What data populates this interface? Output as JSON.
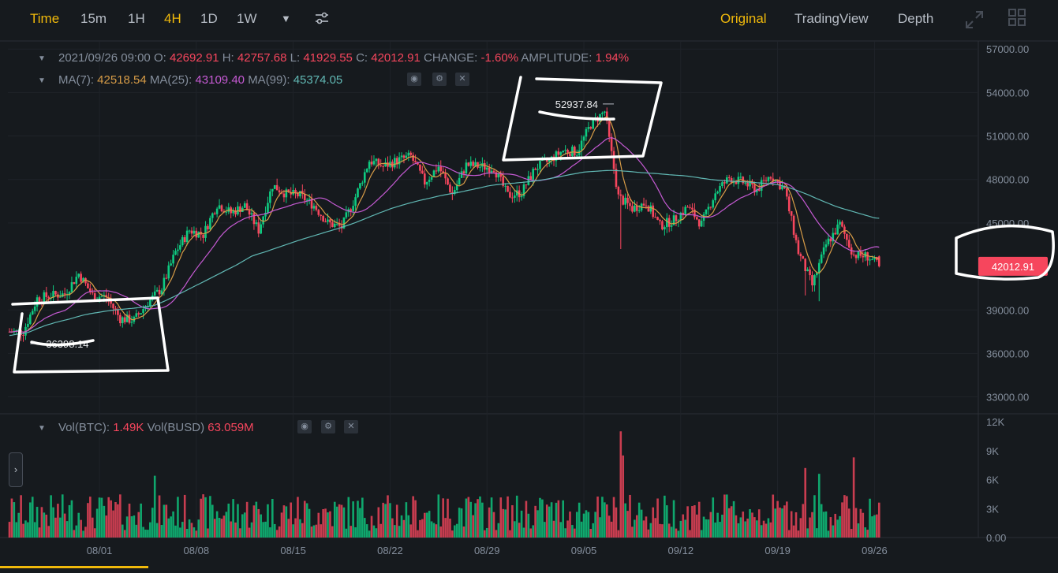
{
  "toolbar": {
    "time": "Time",
    "intervals": [
      "15m",
      "1H",
      "4H",
      "1D",
      "1W"
    ],
    "active_interval": "4H",
    "more_icon": "caret-down-icon",
    "settings_icon": "sliders-icon",
    "views": [
      "Original",
      "TradingView",
      "Depth"
    ],
    "active_view": "Original",
    "fullscreen_icon": "expand-icon",
    "layout_icon": "grid-icon"
  },
  "ohlc": {
    "date": "2021/09/26 09:00",
    "open_label": "O:",
    "open": "42692.91",
    "high_label": "H:",
    "high": "42757.68",
    "low_label": "L:",
    "low": "41929.55",
    "close_label": "C:",
    "close": "42012.91",
    "change_label": "CHANGE:",
    "change": "-1.60%",
    "amplitude_label": "AMPLITUDE:",
    "amplitude": "1.94%"
  },
  "ma": {
    "ma7_label": "MA(7):",
    "ma7": "42518.54",
    "ma25_label": "MA(25):",
    "ma25": "43109.40",
    "ma99_label": "MA(99):",
    "ma99": "45374.05"
  },
  "volume": {
    "btc_label": "Vol(BTC):",
    "btc": "1.49K",
    "busd_label": "Vol(BUSD)",
    "busd": "63.059M"
  },
  "markers": {
    "high": "52937.84",
    "low": "36398.14",
    "last_price": "42012.91"
  },
  "colors": {
    "up": "#0ecb81",
    "down": "#f6465d",
    "accent": "#f0b90b",
    "ma7": "#d79c47",
    "ma25": "#c55ad3",
    "ma99": "#61b8b4"
  },
  "chart_data": {
    "type": "candlestick",
    "price_ticks": [
      "57000.00",
      "54000.00",
      "51000.00",
      "48000.00",
      "45000.00",
      "39000.00",
      "36000.00",
      "33000.00"
    ],
    "price_tick_values": [
      57000,
      54000,
      51000,
      48000,
      45000,
      39000,
      36000,
      33000
    ],
    "volume_ticks": [
      "12K",
      "9K",
      "6K",
      "3K",
      "0.00"
    ],
    "volume_tick_values": [
      12000,
      9000,
      6000,
      3000,
      0
    ],
    "date_ticks": [
      "08/01",
      "08/08",
      "08/15",
      "08/22",
      "08/29",
      "09/05",
      "09/12",
      "09/19",
      "09/26"
    ],
    "price_range": [
      32000,
      57500
    ],
    "volume_range": [
      0,
      12000
    ],
    "close_path": [
      [
        "2021-07-26",
        37500
      ],
      [
        "2021-07-27",
        39800
      ],
      [
        "2021-07-28",
        40000
      ],
      [
        "2021-07-29",
        40100
      ],
      [
        "2021-07-30",
        41500
      ],
      [
        "2021-07-31",
        40000
      ],
      [
        "2021-08-01",
        39900
      ],
      [
        "2021-08-02",
        38400
      ],
      [
        "2021-08-03",
        38300
      ],
      [
        "2021-08-04",
        39500
      ],
      [
        "2021-08-05",
        40500
      ],
      [
        "2021-08-06",
        43000
      ],
      [
        "2021-08-07",
        44500
      ],
      [
        "2021-08-08",
        44200
      ],
      [
        "2021-08-09",
        46300
      ],
      [
        "2021-08-10",
        45700
      ],
      [
        "2021-08-11",
        46200
      ],
      [
        "2021-08-12",
        44500
      ],
      [
        "2021-08-13",
        47600
      ],
      [
        "2021-08-14",
        47000
      ],
      [
        "2021-08-15",
        46900
      ],
      [
        "2021-08-16",
        46200
      ],
      [
        "2021-08-17",
        45000
      ],
      [
        "2021-08-18",
        44700
      ],
      [
        "2021-08-19",
        46800
      ],
      [
        "2021-08-20",
        49300
      ],
      [
        "2021-08-21",
        48900
      ],
      [
        "2021-08-22",
        49300
      ],
      [
        "2021-08-23",
        49600
      ],
      [
        "2021-08-24",
        47800
      ],
      [
        "2021-08-25",
        48900
      ],
      [
        "2021-08-26",
        47000
      ],
      [
        "2021-08-27",
        49000
      ],
      [
        "2021-08-28",
        48900
      ],
      [
        "2021-08-29",
        48800
      ],
      [
        "2021-08-30",
        46900
      ],
      [
        "2021-08-31",
        47100
      ],
      [
        "2021-09-01",
        48800
      ],
      [
        "2021-09-02",
        49300
      ],
      [
        "2021-09-03",
        50000
      ],
      [
        "2021-09-04",
        49900
      ],
      [
        "2021-09-05",
        51800
      ],
      [
        "2021-09-06",
        52700
      ],
      [
        "2021-09-07",
        46800
      ],
      [
        "2021-09-08",
        46000
      ],
      [
        "2021-09-09",
        46400
      ],
      [
        "2021-09-10",
        44800
      ],
      [
        "2021-09-11",
        45200
      ],
      [
        "2021-09-12",
        46100
      ],
      [
        "2021-09-13",
        44900
      ],
      [
        "2021-09-14",
        47100
      ],
      [
        "2021-09-15",
        48100
      ],
      [
        "2021-09-16",
        47800
      ],
      [
        "2021-09-17",
        47300
      ],
      [
        "2021-09-18",
        48300
      ],
      [
        "2021-09-19",
        47300
      ],
      [
        "2021-09-20",
        43000
      ],
      [
        "2021-09-21",
        40700
      ],
      [
        "2021-09-22",
        43500
      ],
      [
        "2021-09-23",
        44900
      ],
      [
        "2021-09-24",
        42800
      ],
      [
        "2021-09-25",
        42700
      ],
      [
        "2021-09-26",
        42012.91
      ]
    ]
  }
}
